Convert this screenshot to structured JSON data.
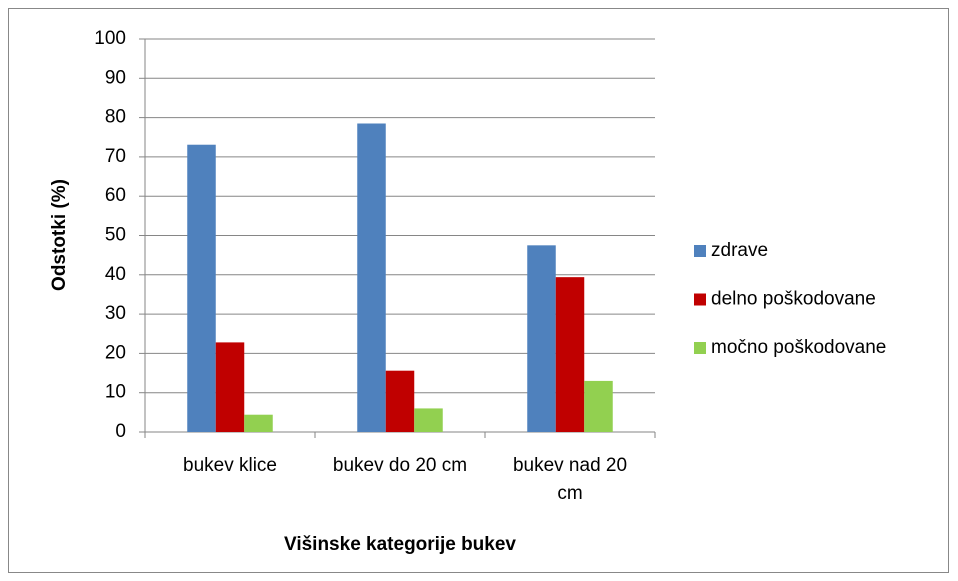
{
  "chart_data": {
    "type": "bar",
    "categories": [
      "bukev klice",
      "bukev do 20 cm",
      "bukev nad 20 cm"
    ],
    "series": [
      {
        "name": "zdrave",
        "color": "#4f81bd",
        "values": [
          73.1,
          78.5,
          47.5
        ]
      },
      {
        "name": "delno poškodovane",
        "color": "#c00000",
        "values": [
          22.8,
          15.6,
          39.4
        ]
      },
      {
        "name": "močno poškodovane",
        "color": "#92d050",
        "values": [
          4.4,
          6.0,
          13.0
        ]
      }
    ],
    "ylabel": "Odstotki (%)",
    "xlabel": "Višinske kategorije bukev",
    "ylim": [
      0,
      100
    ],
    "yticks": [
      0,
      10,
      20,
      30,
      40,
      50,
      60,
      70,
      80,
      90,
      100
    ],
    "grid": true,
    "legend": "right"
  }
}
